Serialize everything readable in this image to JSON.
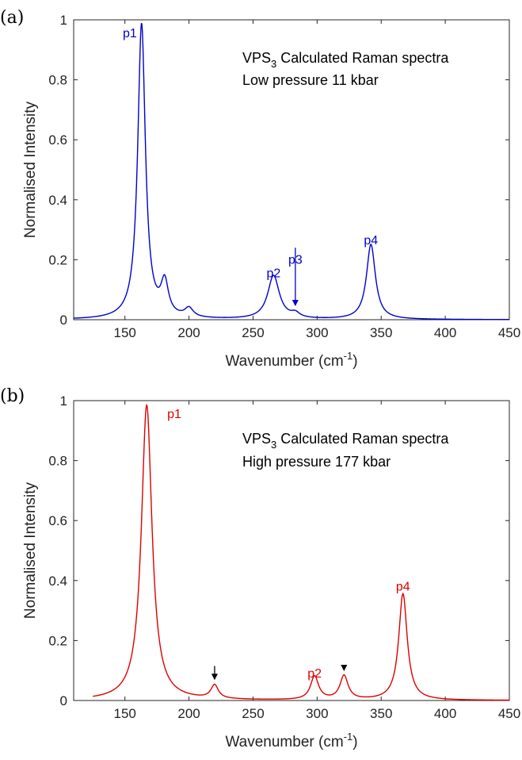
{
  "chart_data": [
    {
      "type": "line",
      "panel_label": "(a)",
      "annotation_lines": [
        {
          "text": "VPS",
          "sub": "3",
          "tail": " Calculated Raman spectra"
        },
        {
          "text": "Low pressure 11 kbar",
          "sub": "",
          "tail": ""
        }
      ],
      "xlabel": "Wavenumber (cm",
      "xlabel_sup": "-1",
      "xlabel_tail": ")",
      "ylabel": "Normalised Intensity",
      "xlim": [
        110,
        450
      ],
      "ylim": [
        0,
        1
      ],
      "xticks": [
        150,
        200,
        250,
        300,
        350,
        400,
        450
      ],
      "yticks": [
        0,
        0.2,
        0.4,
        0.6,
        0.8,
        1
      ],
      "ytick_labels": [
        "0",
        "0.2",
        "0.4",
        "0.6",
        "0.8",
        "1"
      ],
      "grid": false,
      "color": "#0000cc",
      "series": [
        {
          "x_range": [
            110,
            450
          ],
          "peaks": [
            {
              "center": 163,
              "height": 0.985,
              "hwhm": 3.6
            },
            {
              "center": 181,
              "height": 0.11,
              "hwhm": 3.5
            },
            {
              "center": 200,
              "height": 0.03,
              "hwhm": 4.0
            },
            {
              "center": 266,
              "height": 0.145,
              "hwhm": 5.5
            },
            {
              "center": 283,
              "height": 0.015,
              "hwhm": 4.0
            },
            {
              "center": 342,
              "height": 0.25,
              "hwhm": 4.2
            }
          ]
        }
      ],
      "peak_labels": [
        {
          "text": "p1",
          "x": 163,
          "y": 1.0
        },
        {
          "text": "p2",
          "x": 266,
          "y": 0.2
        },
        {
          "text": "p3",
          "x": 283,
          "y": 0.245
        },
        {
          "text": "p4",
          "x": 342,
          "y": 0.31
        }
      ],
      "arrows": [
        {
          "x": 283,
          "y_from": 0.24,
          "y_to": 0.045
        }
      ]
    },
    {
      "type": "line",
      "panel_label": "(b)",
      "annotation_lines": [
        {
          "text": "VPS",
          "sub": "3",
          "tail": " Calculated Raman spectra"
        },
        {
          "text": "High pressure 177 kbar",
          "sub": "",
          "tail": ""
        }
      ],
      "xlabel": "Wavenumber (cm",
      "xlabel_sup": "-1",
      "xlabel_tail": ")",
      "ylabel": "Normalised Intensity",
      "xlim": [
        110,
        450
      ],
      "ylim": [
        0,
        1
      ],
      "xticks": [
        150,
        200,
        250,
        300,
        350,
        400,
        450
      ],
      "yticks": [
        0,
        0.2,
        0.4,
        0.6,
        0.8,
        1
      ],
      "ytick_labels": [
        "0",
        "0.2",
        "0.4",
        "0.6",
        "0.8",
        "1"
      ],
      "grid": false,
      "color": "#dd0000",
      "series": [
        {
          "x_range": [
            125,
            450
          ],
          "peaks": [
            {
              "center": 167,
              "height": 0.985,
              "hwhm": 5.0
            },
            {
              "center": 220,
              "height": 0.045,
              "hwhm": 3.5
            },
            {
              "center": 298,
              "height": 0.078,
              "hwhm": 3.8
            },
            {
              "center": 321,
              "height": 0.08,
              "hwhm": 3.8
            },
            {
              "center": 367,
              "height": 0.355,
              "hwhm": 4.0
            }
          ]
        }
      ],
      "peak_labels": [
        {
          "text": "p1",
          "x": 183,
          "y": 1.0
        },
        {
          "text": "p2",
          "x": 298,
          "y": 0.135
        },
        {
          "text": "p4",
          "x": 367,
          "y": 0.425
        }
      ],
      "arrows": [
        {
          "x": 220,
          "y_from": 0.11,
          "y_to": 0.07
        },
        {
          "x": 321,
          "y_from": 0.11,
          "y_to": 0.1
        }
      ]
    }
  ]
}
